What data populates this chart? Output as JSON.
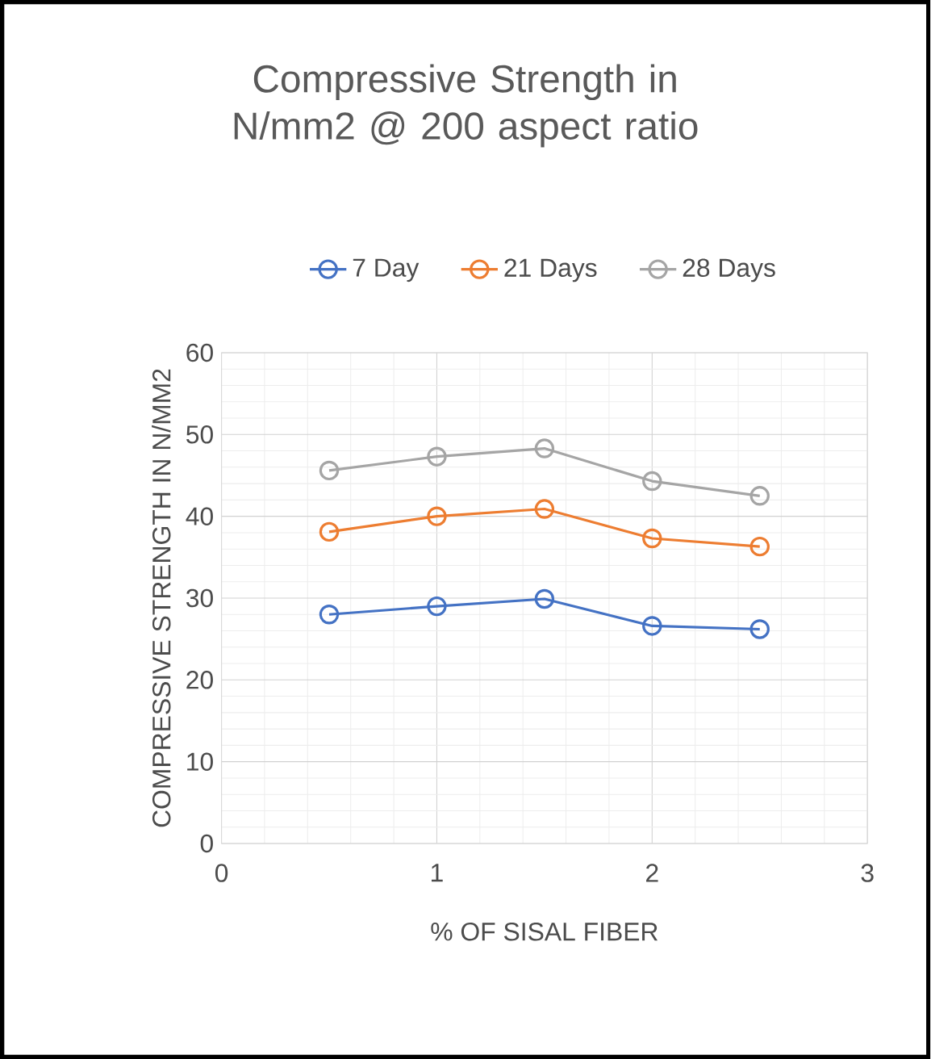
{
  "chart_data": {
    "type": "line",
    "title": "Compressive Strength in N/mm2 @ 200 aspect ratio",
    "xlabel": "% OF SISAL FIBER",
    "ylabel": "COMPRESSIVE STRENGTH IN N/MM2",
    "x": [
      0.5,
      1,
      1.5,
      2,
      2.5
    ],
    "series": [
      {
        "name": "7 Day",
        "color": "#4472c4",
        "values": [
          28.0,
          29.0,
          29.9,
          26.6,
          26.2
        ]
      },
      {
        "name": "21 Days",
        "color": "#ed7d31",
        "values": [
          38.1,
          40.0,
          40.9,
          37.3,
          36.3
        ]
      },
      {
        "name": "28 Days",
        "color": "#a5a5a5",
        "values": [
          45.6,
          47.3,
          48.3,
          44.3,
          42.5
        ]
      }
    ],
    "xlim": [
      0,
      3
    ],
    "xticks": [
      0,
      1,
      2,
      3
    ],
    "ylim": [
      0,
      60
    ],
    "yticks": [
      0,
      10,
      20,
      30,
      40,
      50,
      60
    ],
    "grid": true,
    "legend": "top",
    "marker": "circle",
    "line_style": "solid"
  }
}
